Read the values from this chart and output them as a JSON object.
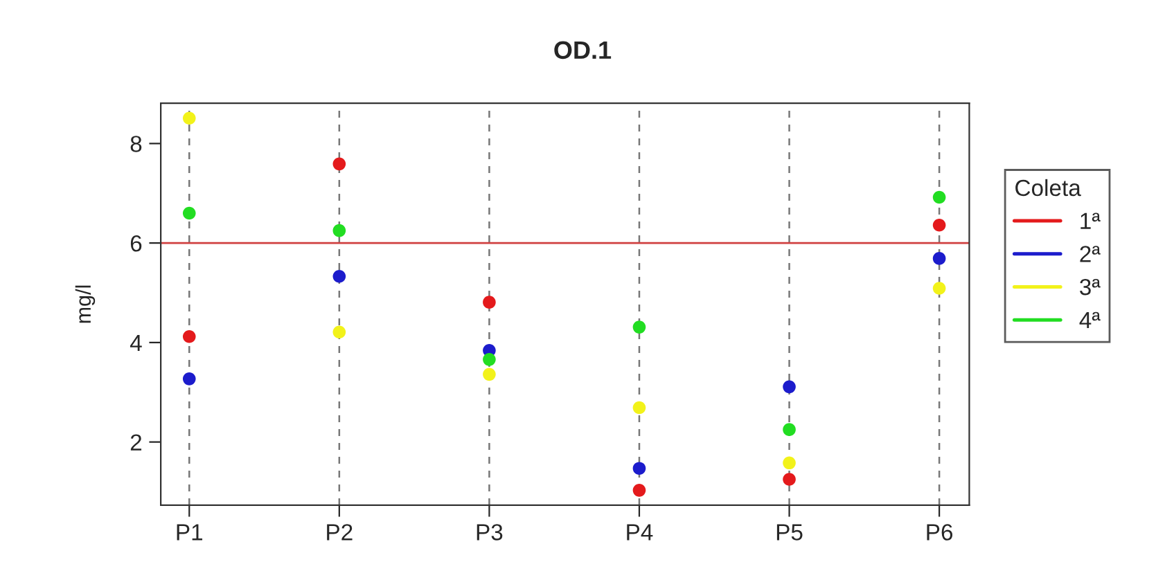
{
  "chart_data": {
    "type": "scatter",
    "title": "OD.1",
    "ylabel": "mg/l",
    "legend_title": "Coleta",
    "categories": [
      "P1",
      "P2",
      "P3",
      "P4",
      "P5",
      "P6"
    ],
    "series": [
      {
        "name": "1ª",
        "color": "#e41a1c",
        "values": [
          4.12,
          7.59,
          4.81,
          1.03,
          1.25,
          6.36
        ]
      },
      {
        "name": "2ª",
        "color": "#1c1ccc",
        "values": [
          3.27,
          5.33,
          3.84,
          1.47,
          3.11,
          5.69
        ]
      },
      {
        "name": "3ª",
        "color": "#f2f21a",
        "values": [
          8.51,
          4.21,
          3.36,
          2.69,
          1.58,
          5.09
        ]
      },
      {
        "name": "4ª",
        "color": "#22dd22",
        "values": [
          6.6,
          6.25,
          3.66,
          4.31,
          2.25,
          6.92
        ]
      }
    ],
    "ylim": [
      0.73,
      8.81
    ],
    "yticks": [
      2,
      4,
      6,
      8
    ],
    "ref_lines": [
      {
        "axis": "y",
        "value": 6,
        "color": "#d04040",
        "line_style": "solid"
      }
    ],
    "grid": "x",
    "legend": "right",
    "marker": "circle"
  }
}
